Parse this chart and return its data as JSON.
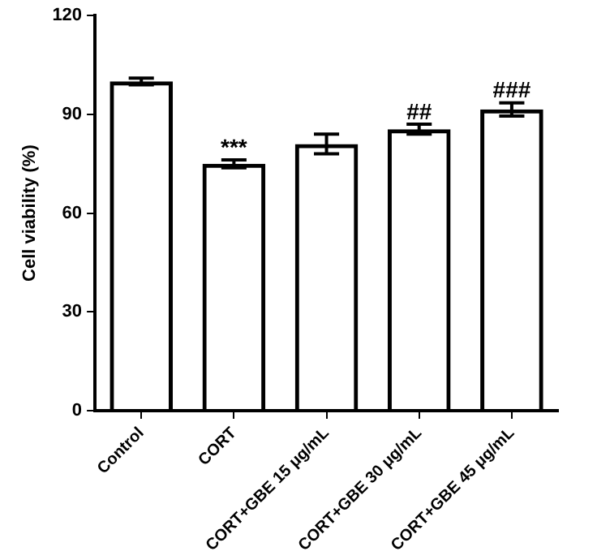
{
  "chart_data": {
    "type": "bar",
    "ylabel": "Cell viability (%)",
    "categories": [
      "Control",
      "CORT",
      "CORT+GBE 15 μg/mL",
      "CORT+GBE 30 μg/mL",
      "CORT+GBE 45 μg/mL"
    ],
    "values": [
      100,
      75,
      81,
      85.5,
      91.5
    ],
    "errors": [
      1,
      1.2,
      3,
      1.5,
      2
    ],
    "color": "#000000",
    "ylim": [
      0,
      120
    ],
    "yticks": [
      0,
      30,
      60,
      90,
      120
    ],
    "grid": false,
    "annotations": [
      {
        "text": "***",
        "x": "CORT",
        "y": 76.2
      },
      {
        "text": "##",
        "x": "CORT+GBE 30 μg/mL",
        "y": 87
      },
      {
        "text": "###",
        "x": "CORT+GBE 45 μg/mL",
        "y": 93.5
      }
    ]
  }
}
